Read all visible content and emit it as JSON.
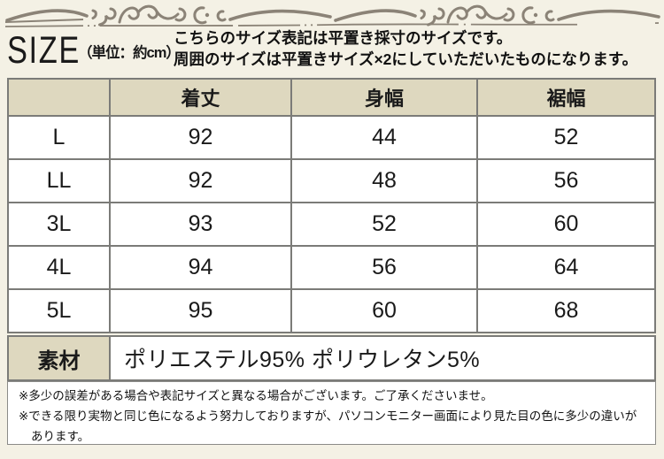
{
  "theme": {
    "background": "#f4f1e5",
    "cell_beige": "#ded8bf",
    "border_gray": "#7b7b78",
    "ornament_color": "#8b8377",
    "text_color": "#111111"
  },
  "ornament": {
    "icon": "flourish-divider"
  },
  "header": {
    "size_label": "SIZE",
    "unit_label": "（単位：約cm）",
    "description_line1": "こちらのサイズ表記は平置き採寸のサイズです。",
    "description_line2": "周囲のサイズは平置きサイズ×2にしていただいたものになります。"
  },
  "size_table": {
    "corner_label": "",
    "columns": [
      "着丈",
      "身幅",
      "裾幅"
    ],
    "rows": [
      {
        "size": "L",
        "values": [
          "92",
          "44",
          "52"
        ]
      },
      {
        "size": "LL",
        "values": [
          "92",
          "48",
          "56"
        ]
      },
      {
        "size": "3L",
        "values": [
          "93",
          "52",
          "60"
        ]
      },
      {
        "size": "4L",
        "values": [
          "94",
          "56",
          "64"
        ]
      },
      {
        "size": "5L",
        "values": [
          "95",
          "60",
          "68"
        ]
      }
    ]
  },
  "material": {
    "label": "素材",
    "value": "ポリエステル95%  ポリウレタン5%"
  },
  "notes": [
    "※多少の誤差がある場合や表記サイズと異なる場合がございます。ご了承くださいませ。",
    "※できる限り実物と同じ色になるよう努力しておりますが、パソコンモニター画面により見た目の色に多少の違いがあります。"
  ]
}
